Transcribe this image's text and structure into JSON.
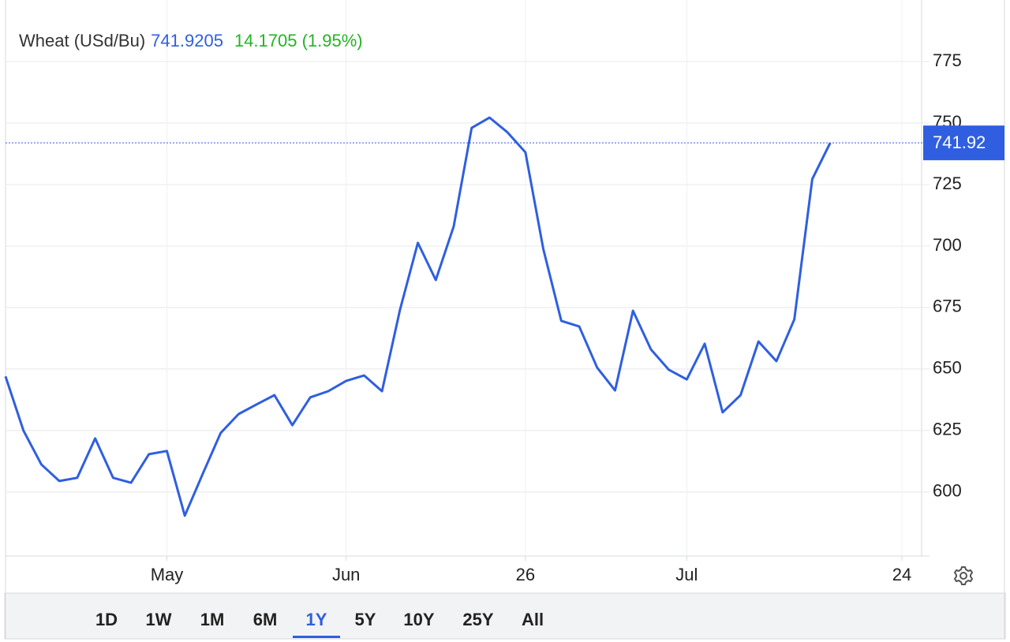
{
  "chart_data": {
    "type": "line",
    "title": "Wheat (USd/Bu)",
    "price": "741.9205",
    "change": "14.1705 (1.95%)",
    "categories": [
      null,
      null,
      null,
      null,
      null,
      null,
      null,
      null,
      null,
      "May",
      null,
      null,
      null,
      null,
      null,
      null,
      null,
      null,
      null,
      "Jun",
      null,
      null,
      null,
      null,
      null,
      null,
      null,
      null,
      null,
      "26",
      null,
      null,
      null,
      null,
      null,
      null,
      null,
      null,
      "Jul",
      null,
      null,
      null,
      null,
      null,
      null,
      null,
      null,
      null,
      null,
      null,
      "24"
    ],
    "series": [
      {
        "name": "Wheat",
        "color": "#2f5fe0",
        "values": [
          647,
          625,
          611.2,
          604.5,
          605.8,
          621.8,
          605.8,
          603.8,
          615.4,
          616.7,
          590.4,
          607.4,
          624,
          631.7,
          635.6,
          639.4,
          627.2,
          638.5,
          641,
          645.2,
          647.4,
          641,
          674,
          701.3,
          686.2,
          708,
          748,
          752.2,
          746.2,
          738.1,
          698.7,
          669.6,
          667.3,
          650.6,
          641.3,
          673.7,
          658,
          649.7,
          645.8,
          660.3,
          632.4,
          639.4,
          661.2,
          653.2,
          670.2,
          727.2,
          741.92,
          null,
          null,
          null,
          null
        ]
      }
    ],
    "last_price_tag": 741.92,
    "ylim": [
      574,
      800
    ],
    "yticks": [
      600,
      625,
      650,
      675,
      700,
      725,
      750,
      775
    ],
    "grid": true,
    "ranges": [
      "1D",
      "1W",
      "1M",
      "6M",
      "1Y",
      "5Y",
      "10Y",
      "25Y",
      "All"
    ],
    "selected_range": 4
  }
}
